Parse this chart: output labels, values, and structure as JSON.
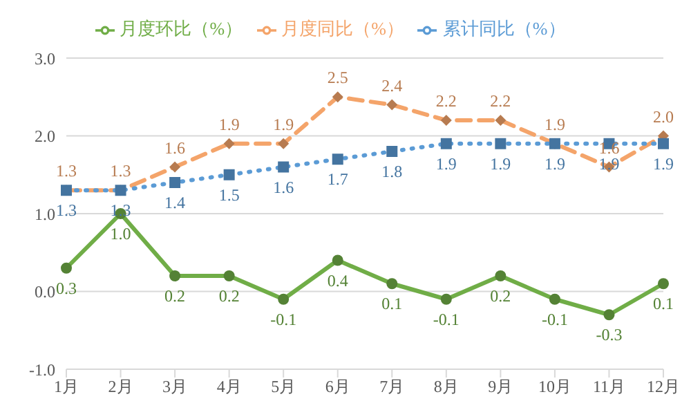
{
  "chart_data": {
    "type": "line",
    "categories": [
      "1月",
      "2月",
      "3月",
      "4月",
      "5月",
      "6月",
      "7月",
      "8月",
      "9月",
      "10月",
      "11月",
      "12月"
    ],
    "series": [
      {
        "name": "月度环比（%）",
        "color": "#70ad47",
        "marker": "circle",
        "line_style": "solid",
        "values": [
          0.3,
          1.0,
          0.2,
          0.2,
          -0.1,
          0.4,
          0.1,
          -0.1,
          0.2,
          -0.1,
          -0.3,
          0.1
        ],
        "value_labels": [
          "0.3",
          "1.0",
          "0.2",
          "0.2",
          "-0.1",
          "0.4",
          "0.1",
          "-0.1",
          "0.2",
          "-0.1",
          "-0.3",
          "0.1"
        ]
      },
      {
        "name": "月度同比（%）",
        "color": "#f4a46a",
        "marker": "diamond",
        "line_style": "dashed",
        "values": [
          1.3,
          1.3,
          1.6,
          1.9,
          1.9,
          2.5,
          2.4,
          2.2,
          2.2,
          1.9,
          1.6,
          2.0
        ],
        "value_labels": [
          "1.3",
          "1.3",
          "1.6",
          "1.9",
          "1.9",
          "2.5",
          "2.4",
          "2.2",
          "2.2",
          "1.9",
          "1.6",
          "2.0"
        ]
      },
      {
        "name": "累计同比（%）",
        "color": "#5b9bd5",
        "marker": "square",
        "line_style": "dotted",
        "values": [
          1.3,
          1.3,
          1.4,
          1.5,
          1.6,
          1.7,
          1.8,
          1.9,
          1.9,
          1.9,
          1.9,
          1.9
        ],
        "value_labels": [
          "1.3",
          "1.3",
          "1.4",
          "1.5",
          "1.6",
          "1.7",
          "1.8",
          "1.9",
          "1.9",
          "1.9",
          "1.9",
          "1.9"
        ]
      }
    ],
    "ylim": [
      -1,
      3
    ],
    "yticks": [
      {
        "value": -1,
        "label": "-1.0"
      },
      {
        "value": 0,
        "label": "0.0"
      },
      {
        "value": 1,
        "label": "1.0"
      },
      {
        "value": 2,
        "label": "2.0"
      },
      {
        "value": 3,
        "label": "3.0"
      }
    ],
    "grid": "y",
    "legend": "top"
  }
}
